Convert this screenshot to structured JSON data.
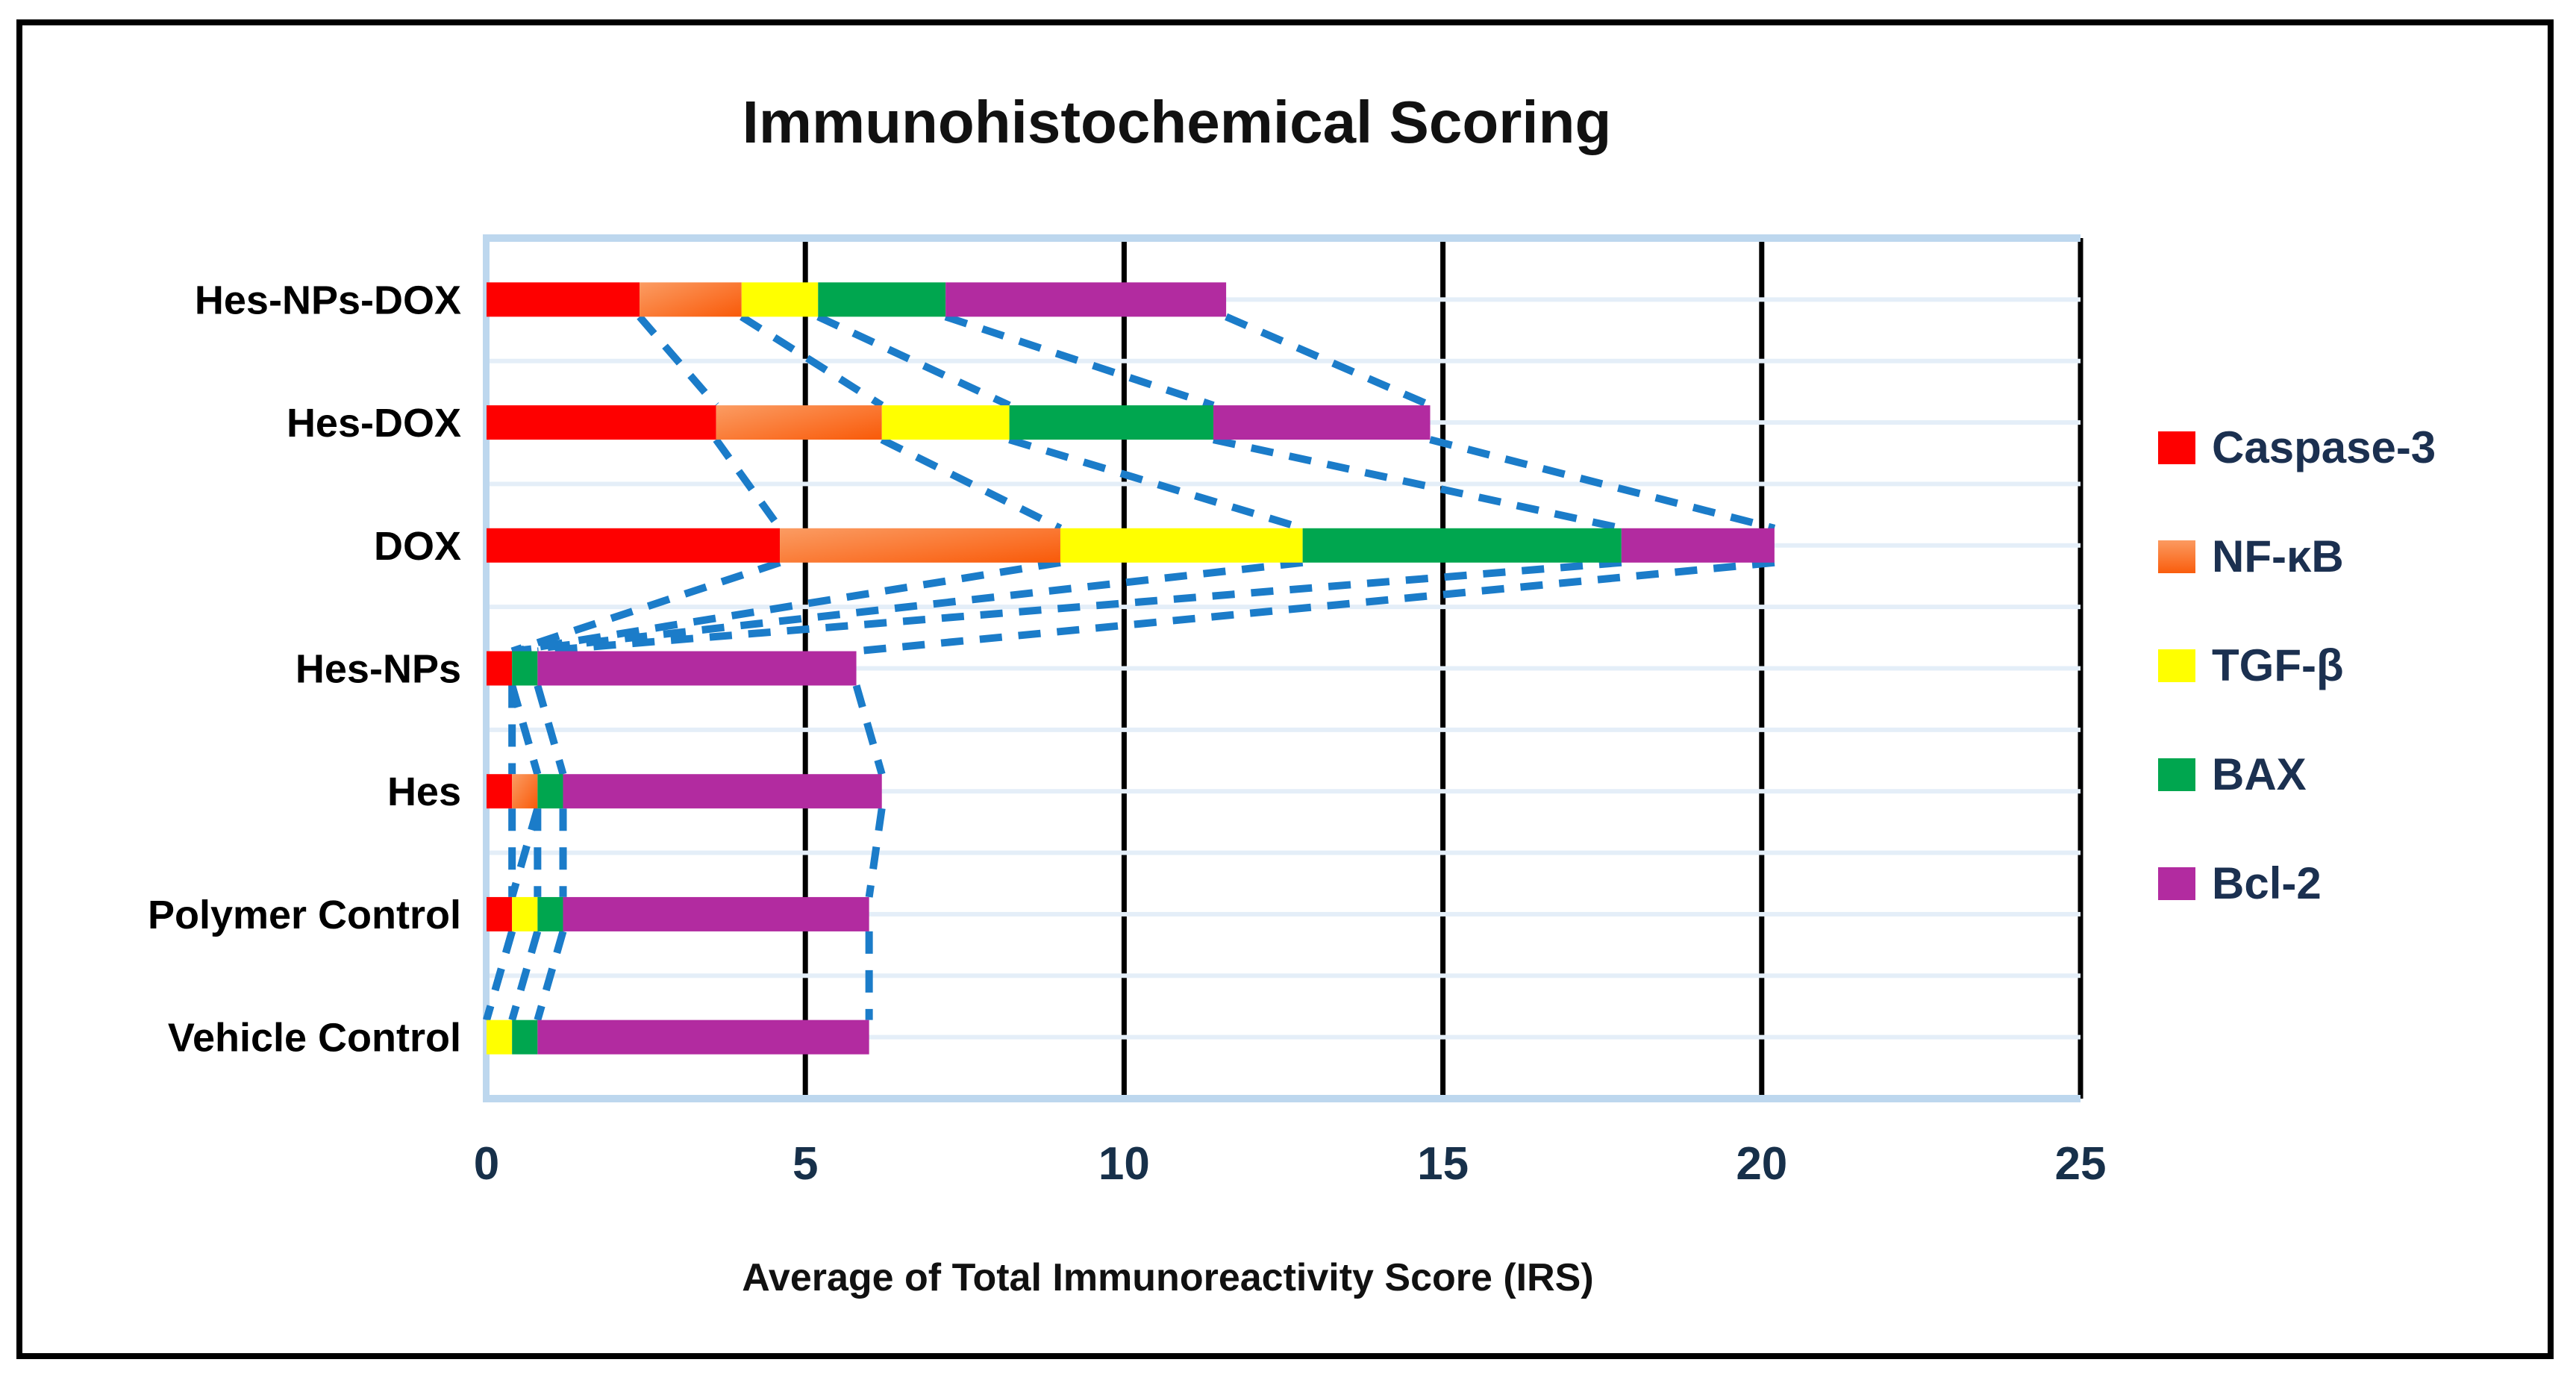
{
  "figure": {
    "frame_border_color": "#000000",
    "background_color": "#ffffff"
  },
  "chart_data": {
    "type": "bar",
    "orientation": "horizontal-stacked",
    "title": "Immunohistochemical Scoring",
    "xlabel": "Average of Total Immunoreactivity Score (IRS)",
    "xlim": [
      0,
      25
    ],
    "xticks": [
      "0",
      "5",
      "10",
      "15",
      "20",
      "25"
    ],
    "grid": "vertical-black-lines-at-5-unit-intervals, light-blue-horizontal-row-lines",
    "legend_position": "right",
    "categories": [
      "Hes-NPs-DOX",
      "Hes-DOX",
      "DOX",
      "Hes-NPs",
      "Hes",
      "Polymer Control",
      "Vehicle Control"
    ],
    "series": [
      {
        "name": "Caspase-3",
        "color": "#FE0000",
        "values": [
          2.4,
          3.6,
          4.6,
          0.4,
          0.4,
          0.4,
          0
        ]
      },
      {
        "name": "NF-κB",
        "color": "#F97425",
        "gradient": [
          "#FB9A60",
          "#F95D0D"
        ],
        "values": [
          1.6,
          2.6,
          4.4,
          0,
          0.4,
          0,
          0
        ]
      },
      {
        "name": "TGF-β",
        "color": "#FFFF00",
        "values": [
          1.2,
          2.0,
          3.8,
          0,
          0,
          0.4,
          0.4
        ]
      },
      {
        "name": "BAX",
        "color": "#00A64F",
        "values": [
          2.0,
          3.2,
          5.0,
          0.4,
          0.4,
          0.4,
          0.4
        ]
      },
      {
        "name": "Bcl-2",
        "color": "#B22BA0",
        "values": [
          4.4,
          3.4,
          2.4,
          5.0,
          5.0,
          4.8,
          5.2
        ]
      }
    ],
    "totals": [
      11.6,
      14.8,
      20.2,
      5.8,
      6.2,
      6.0,
      6.0
    ],
    "colors": {
      "tick_label": "#17304A",
      "category_label": "#000000",
      "title_text": "#111111",
      "axis_title_text": "#111111",
      "legend_text": "#1B3050",
      "plot_border_blue": "#BDD7EE",
      "row_gridline_blue": "#E4EEF8",
      "vertical_gridline_black": "#000000",
      "connector_line_blue": "#1B7CC9"
    }
  }
}
